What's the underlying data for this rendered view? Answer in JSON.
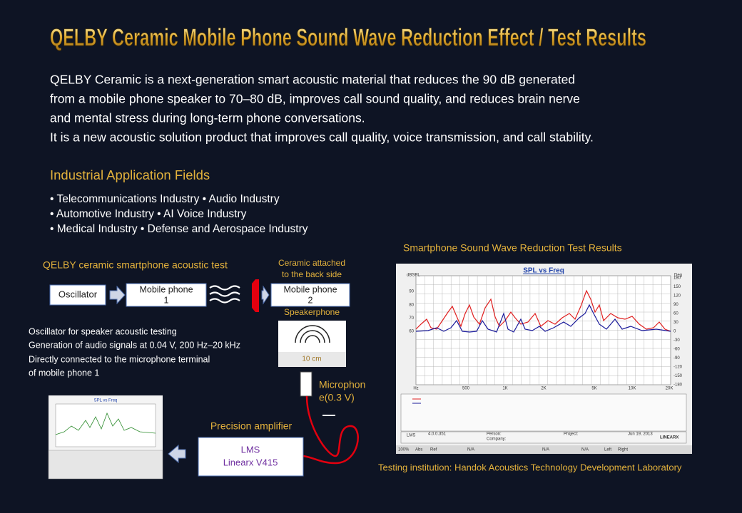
{
  "header": {
    "title": "QELBY Ceramic Mobile Phone Sound Wave Reduction Effect / Test Results"
  },
  "intro": {
    "lines": [
      "QELBY Ceramic is a next-generation smart acoustic material that reduces the 90 dB generated",
      "from a mobile phone speaker to 70–80 dB, improves call sound quality, and reduces brain nerve",
      "and mental stress during long-term phone conversations.",
      "It is a new acoustic solution product that improves call quality, voice transmission, and call stability."
    ]
  },
  "fields": {
    "heading": "Industrial Application Fields",
    "items": [
      "• Telecommunications Industry • Audio Industry",
      "• Automotive Industry • AI Voice Industry",
      "• Medical Industry • Defense and Aerospace Industry"
    ]
  },
  "diagram": {
    "title": "QELBY ceramic smartphone acoustic test",
    "oscillator": "Oscillator",
    "phone1": [
      "Mobile phone",
      "1"
    ],
    "ceramic_note": [
      "Ceramic attached",
      "to the back side"
    ],
    "phone2": [
      "Mobile phone",
      "2"
    ],
    "speakerphone": "Speakerphone",
    "distance": "10 cm",
    "notes": [
      "Oscillator for speaker acoustic testing",
      "Generation of audio signals at 0.04 V, 200 Hz–20 kHz",
      "Directly connected to the microphone terminal",
      "of mobile phone 1"
    ],
    "microphone": [
      "Microphon",
      "e(0.3 V)"
    ],
    "amplifier_label": "Precision amplifier",
    "amplifier": [
      "LMS",
      "Linearx V415"
    ],
    "thumb_title": "SPL vs Freq"
  },
  "results": {
    "heading": "Smartphone Sound Wave Reduction Test Results",
    "chart_title": "SPL vs Freq",
    "left_unit": "dBSPL",
    "right_unit": "Deg",
    "left_ticks": [
      "90",
      "80",
      "70",
      "60"
    ],
    "right_ticks": [
      "180",
      "150",
      "120",
      "90",
      "60",
      "30",
      "0",
      "-30",
      "-60",
      "-90",
      "-120",
      "-150",
      "-180"
    ],
    "x_ticks": [
      "Hz",
      "500",
      "1K",
      "2K",
      "5K",
      "10K",
      "20K"
    ],
    "footer": [
      "LMS",
      "4.0.0.351",
      "Person:",
      "Company:",
      "Project:",
      "Jun 19, 2013",
      "LINEARX"
    ],
    "toolbar": [
      "100%",
      "Abs",
      "Ref",
      "N/A",
      "N/A",
      "N/A",
      "Left",
      "Right"
    ],
    "source": "Testing institution: Handok Acoustics Technology Development Laboratory"
  }
}
